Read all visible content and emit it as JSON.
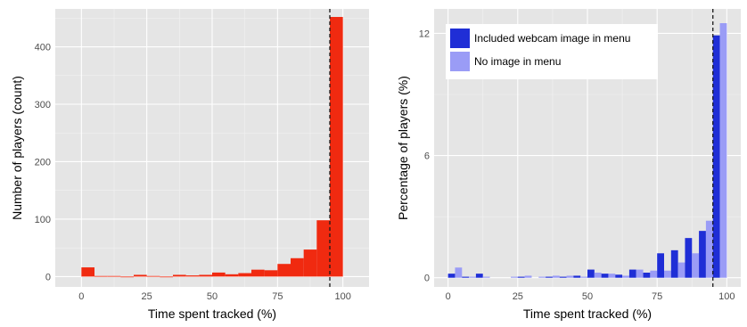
{
  "colors": {
    "panel_bg": "#e5e5e5",
    "grid": "#ffffff",
    "hist_fill": "#f02a10",
    "webcam": "#1f2ed6",
    "no_image": "#9a9cf6",
    "refline": "#1a1a1a"
  },
  "chart_data": [
    {
      "type": "bar",
      "subtype": "histogram",
      "xlabel": "Time spent tracked (%)",
      "ylabel": "Number of players (count)",
      "xlim": [
        -10,
        110
      ],
      "ylim": [
        -18,
        466
      ],
      "xticks": [
        0,
        25,
        50,
        75,
        100
      ],
      "yticks": [
        0,
        100,
        200,
        300,
        400
      ],
      "bin_width": 5,
      "reference_line_x": 95,
      "reference_line_style": "dashed",
      "grid": true,
      "bins": [
        {
          "x": 0,
          "value": 16
        },
        {
          "x": 5,
          "value": 1
        },
        {
          "x": 10,
          "value": 1
        },
        {
          "x": 15,
          "value": 0
        },
        {
          "x": 20,
          "value": 3
        },
        {
          "x": 25,
          "value": 1
        },
        {
          "x": 30,
          "value": 0
        },
        {
          "x": 35,
          "value": 3
        },
        {
          "x": 40,
          "value": 2
        },
        {
          "x": 45,
          "value": 3
        },
        {
          "x": 50,
          "value": 7
        },
        {
          "x": 55,
          "value": 4
        },
        {
          "x": 60,
          "value": 6
        },
        {
          "x": 65,
          "value": 12
        },
        {
          "x": 70,
          "value": 11
        },
        {
          "x": 75,
          "value": 22
        },
        {
          "x": 80,
          "value": 32
        },
        {
          "x": 85,
          "value": 47
        },
        {
          "x": 90,
          "value": 98
        },
        {
          "x": 95,
          "value": 452
        }
      ]
    },
    {
      "type": "bar",
      "subtype": "grouped histogram",
      "xlabel": "Time spent tracked (%)",
      "ylabel": "Percentage of players (%)",
      "xlim": [
        -5,
        105
      ],
      "ylim": [
        -0.45,
        13.2
      ],
      "xticks": [
        0,
        25,
        50,
        75,
        100
      ],
      "yticks": [
        0,
        6,
        12
      ],
      "bin_width": 5,
      "reference_line_x": 95,
      "reference_line_style": "dashed",
      "grid": true,
      "legend_position": "top-left",
      "categories": [
        0,
        5,
        10,
        15,
        20,
        25,
        30,
        35,
        40,
        45,
        50,
        55,
        60,
        65,
        70,
        75,
        80,
        85,
        90,
        95
      ],
      "series": [
        {
          "name": "Included webcam image in menu",
          "color_key": "webcam",
          "values": [
            0.2,
            0.05,
            0.2,
            0,
            0,
            0.05,
            0,
            0.05,
            0.05,
            0.1,
            0.4,
            0.2,
            0.15,
            0.4,
            0.25,
            1.2,
            1.35,
            1.95,
            2.3,
            11.9
          ]
        },
        {
          "name": "No image in menu",
          "color_key": "no_image",
          "values": [
            0.5,
            0.05,
            0.05,
            0,
            0.05,
            0.1,
            0.05,
            0.1,
            0.1,
            0.05,
            0.25,
            0.2,
            0.1,
            0.4,
            0.35,
            0.35,
            0.75,
            1.2,
            2.8,
            12.5
          ]
        }
      ]
    }
  ]
}
